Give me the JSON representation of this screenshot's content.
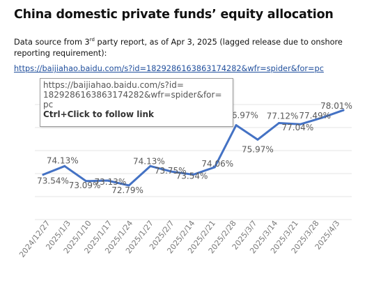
{
  "header": {
    "title": "China domestic private funds’ equity allocation",
    "source_prefix": "Data source from 3",
    "source_sup": "rd",
    "source_suffix": " party report, as of Apr 3, 2025 (lagged release due to onshore reporting requirement):",
    "link": "https://baijiahao.baidu.com/s?id=1829286163863174282&wfr=spider&for=pc"
  },
  "tooltip": {
    "url_text": "https://baijiahao.baidu.com/s?id=\n1829286163863174282&wfr=spider&for=\npc",
    "hint": "Ctrl+Click to follow link"
  },
  "colors": {
    "line": "#4472c4",
    "grid": "#e6e6e6",
    "label": "#595959",
    "link": "#1f4e9c"
  },
  "chart_data": {
    "type": "line",
    "x": [
      "2024/12/27",
      "2025/1/3",
      "2025/1/10",
      "2025/1/17",
      "2025/1/24",
      "2025/1/27",
      "2025/2/7",
      "2025/2/14",
      "2025/2/21",
      "2025/2/28",
      "2025/3/7",
      "2025/3/14",
      "2025/3/21",
      "2025/3/28",
      "2025/4/3"
    ],
    "series": [
      {
        "values": [
          73.54,
          74.13,
          73.09,
          73.13,
          72.79,
          74.13,
          73.75,
          73.54,
          74.06,
          76.97,
          75.97,
          77.12,
          77.04,
          77.49,
          78.01
        ],
        "labels": [
          "73.54%",
          "74.13%",
          "73.09%",
          "73.13%",
          "72.79%",
          "74.13%",
          "73.75%",
          "73.54%",
          "74.06%",
          "76.97%",
          "75.97%",
          "77.12%",
          "77.04%",
          "77.49%",
          "78.01%"
        ]
      }
    ],
    "xlabel": "",
    "ylabel": "",
    "ylim": [
      70,
      80
    ],
    "grid": true,
    "legend": "none"
  }
}
